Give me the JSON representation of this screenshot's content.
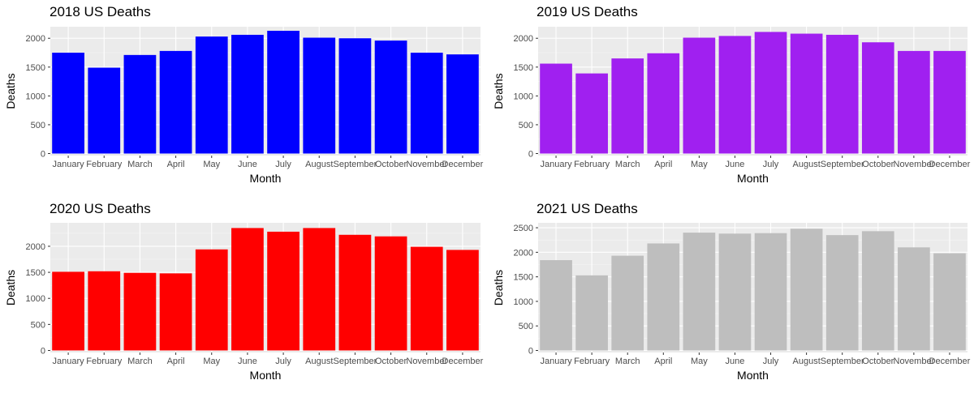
{
  "chart_data": [
    {
      "type": "bar",
      "title": "2018 US Deaths",
      "xlabel": "Month",
      "ylabel": "Deaths",
      "color": "#0000FF",
      "categories": [
        "January",
        "February",
        "March",
        "April",
        "May",
        "June",
        "July",
        "August",
        "September",
        "October",
        "November",
        "December"
      ],
      "values": [
        1750,
        1490,
        1710,
        1780,
        2030,
        2060,
        2130,
        2010,
        2000,
        1960,
        1750,
        1720
      ],
      "ylim": [
        0,
        2200
      ],
      "yticks": [
        0,
        500,
        1000,
        1500,
        2000
      ],
      "grid": true
    },
    {
      "type": "bar",
      "title": "2019 US Deaths",
      "xlabel": "Month",
      "ylabel": "Deaths",
      "color": "#A020F0",
      "categories": [
        "January",
        "February",
        "March",
        "April",
        "May",
        "June",
        "July",
        "August",
        "September",
        "October",
        "November",
        "December"
      ],
      "values": [
        1560,
        1390,
        1650,
        1740,
        2010,
        2040,
        2110,
        2080,
        2060,
        1930,
        1780,
        1780
      ],
      "ylim": [
        0,
        2200
      ],
      "yticks": [
        0,
        500,
        1000,
        1500,
        2000
      ],
      "grid": true
    },
    {
      "type": "bar",
      "title": "2020 US Deaths",
      "xlabel": "Month",
      "ylabel": "Deaths",
      "color": "#FF0000",
      "categories": [
        "January",
        "February",
        "March",
        "April",
        "May",
        "June",
        "July",
        "August",
        "September",
        "October",
        "November",
        "December"
      ],
      "values": [
        1510,
        1520,
        1490,
        1480,
        1940,
        2350,
        2280,
        2350,
        2220,
        2190,
        1990,
        1930
      ],
      "ylim": [
        0,
        2450
      ],
      "yticks": [
        0,
        500,
        1000,
        1500,
        2000
      ],
      "grid": true
    },
    {
      "type": "bar",
      "title": "2021 US Deaths",
      "xlabel": "Month",
      "ylabel": "Deaths",
      "color": "#BEBEBE",
      "categories": [
        "January",
        "February",
        "March",
        "April",
        "May",
        "June",
        "July",
        "August",
        "September",
        "October",
        "November",
        "December"
      ],
      "values": [
        1840,
        1530,
        1930,
        2180,
        2400,
        2380,
        2390,
        2480,
        2350,
        2430,
        2100,
        1980
      ],
      "ylim": [
        0,
        2600
      ],
      "yticks": [
        0,
        500,
        1000,
        1500,
        2000,
        2500
      ],
      "grid": true
    }
  ]
}
